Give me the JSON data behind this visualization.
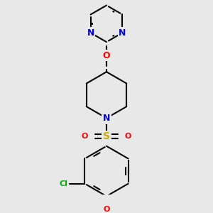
{
  "background_color": "#e8e8e8",
  "bond_color": "#000000",
  "bond_width": 1.5,
  "atom_colors": {
    "N": "#0000cc",
    "O": "#ff0000",
    "S": "#ccaa00",
    "Cl": "#00aa00",
    "C": "#000000"
  },
  "font_size": 8,
  "fig_width": 3.0,
  "fig_height": 3.0,
  "dpi": 100,
  "xlim": [
    -1.6,
    1.6
  ],
  "ylim": [
    -1.8,
    2.2
  ]
}
